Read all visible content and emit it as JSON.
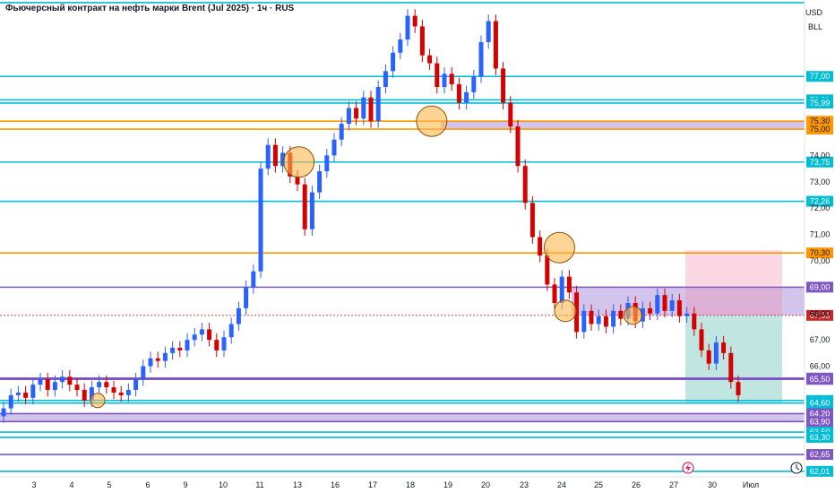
{
  "chart_data": {
    "type": "candlestick",
    "title": "Фьючерсный контракт на нефть марки Brent (Jul 2025) · 1ч · RUS",
    "currency": "USD",
    "unit": "BLL",
    "ylim": [
      61.8,
      79.9
    ],
    "x_ticks": [
      "3",
      "4",
      "5",
      "6",
      "9",
      "10",
      "11",
      "13",
      "16",
      "17",
      "18",
      "19",
      "20",
      "23",
      "24",
      "25",
      "26",
      "27",
      "30",
      "Июл"
    ],
    "y_ticks": [
      "74,00",
      "73,00",
      "72,00",
      "71,00",
      "70,00",
      "68,00",
      "67,00",
      "66,00"
    ],
    "levels": [
      {
        "value": 79.8,
        "label": "",
        "color": "#00bcd4"
      },
      {
        "value": 77.0,
        "label": "77,00",
        "color": "#00bcd4"
      },
      {
        "value": 76.11,
        "label": "76,11",
        "color": "#00bcd4"
      },
      {
        "value": 75.99,
        "label": "75,99",
        "color": "#00bcd4"
      },
      {
        "value": 75.3,
        "label": "75,30",
        "color": "#ff9800"
      },
      {
        "value": 75.0,
        "label": "75,00",
        "color": "#ff9800"
      },
      {
        "value": 73.75,
        "label": "73,75",
        "color": "#00bcd4"
      },
      {
        "value": 72.26,
        "label": "72,26",
        "color": "#00bcd4"
      },
      {
        "value": 70.3,
        "label": "70,30",
        "color": "#ff9800"
      },
      {
        "value": 69.0,
        "label": "69,00",
        "color": "#7e57c2"
      },
      {
        "value": 67.93,
        "label": "67,93",
        "color": "#c62828"
      },
      {
        "value": 65.55,
        "label": "65,55",
        "color": "#7e57c2"
      },
      {
        "value": 65.5,
        "label": "65,50",
        "color": "#7e57c2"
      },
      {
        "value": 64.7,
        "label": "64,70",
        "color": "#00bcd4"
      },
      {
        "value": 64.6,
        "label": "64,60",
        "color": "#00bcd4"
      },
      {
        "value": 64.2,
        "label": "64,20",
        "color": "#7e57c2"
      },
      {
        "value": 63.9,
        "label": "63,90",
        "color": "#7e57c2"
      },
      {
        "value": 63.5,
        "label": "63,50",
        "color": "#00bcd4"
      },
      {
        "value": 63.3,
        "label": "63,30",
        "color": "#00bcd4"
      },
      {
        "value": 62.65,
        "label": "62,65",
        "color": "#7e57c2"
      },
      {
        "value": 62.01,
        "label": "62,01",
        "color": "#00bcd4"
      }
    ],
    "extra_labels": [
      "68,00"
    ],
    "close_series": [
      64.4,
      64.9,
      65.0,
      64.8,
      65.3,
      65.5,
      65.1,
      65.4,
      65.6,
      65.3,
      65.1,
      64.7,
      65.2,
      65.4,
      65.2,
      65.0,
      64.9,
      65.1,
      65.5,
      66.0,
      66.3,
      66.2,
      66.5,
      66.7,
      66.6,
      67.0,
      67.2,
      67.4,
      67.0,
      66.6,
      67.1,
      67.6,
      68.2,
      69.0,
      69.6,
      73.5,
      74.4,
      73.6,
      74.1,
      73.2,
      72.9,
      71.2,
      72.6,
      73.4,
      74.0,
      74.6,
      75.2,
      75.8,
      75.4,
      76.2,
      75.3,
      76.6,
      77.2,
      77.9,
      78.4,
      79.3,
      78.9,
      77.8,
      77.5,
      76.6,
      77.1,
      76.7,
      76.0,
      76.4,
      77.0,
      78.3,
      79.1,
      77.3,
      76.0,
      75.1,
      73.6,
      72.2,
      70.9,
      70.2,
      69.1,
      68.4,
      69.4,
      68.8,
      67.3,
      68.1,
      67.6,
      67.9,
      67.5,
      68.1,
      67.8,
      68.4,
      67.7,
      68.2,
      68.0,
      68.7,
      68.1,
      68.5,
      67.9,
      68.0,
      67.4,
      66.6,
      66.1,
      66.9,
      66.5,
      65.4,
      64.9
    ],
    "circles": [
      {
        "x": 0.117,
        "value": 64.7
      },
      {
        "x": 0.358,
        "value": 73.75
      },
      {
        "x": 0.517,
        "value": 75.3
      },
      {
        "x": 0.67,
        "value": 70.5
      },
      {
        "x": 0.677,
        "value": 68.1
      },
      {
        "x": 0.758,
        "value": 67.93
      }
    ],
    "x_axis_icons": [
      "lightning-icon",
      "clock-icon"
    ]
  }
}
